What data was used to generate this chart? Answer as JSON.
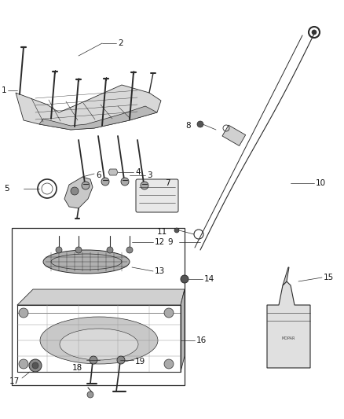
{
  "bg_color": "#ffffff",
  "fig_width": 4.38,
  "fig_height": 5.33,
  "dpi": 100,
  "line_color": "#2a2a2a",
  "label_color": "#111111",
  "gray_fill": "#c8c8c8",
  "light_gray": "#e0e0e0",
  "mid_gray": "#a0a0a0",
  "dark_gray": "#505050"
}
